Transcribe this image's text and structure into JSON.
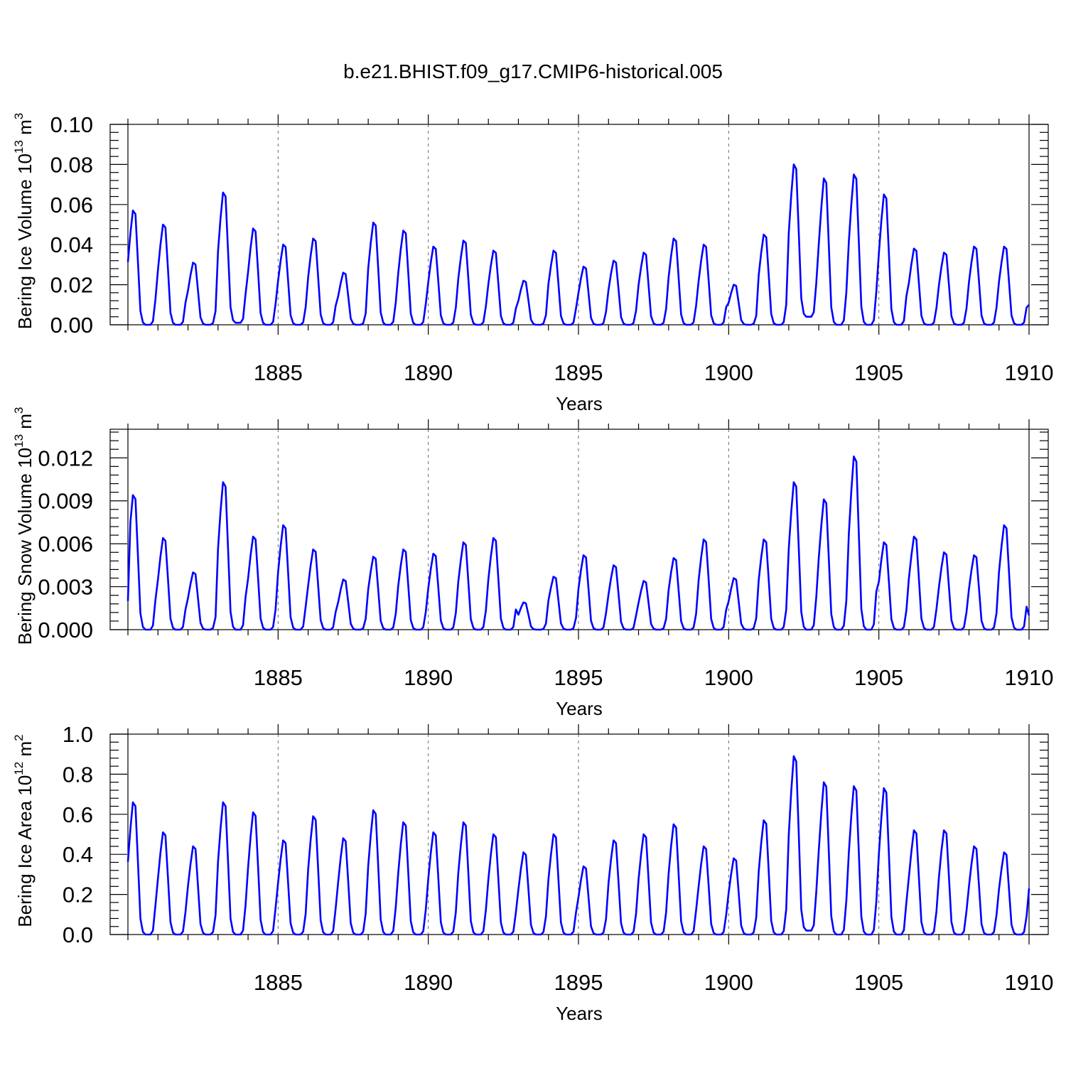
{
  "title": "b.e21.BHIST.f09_g17.CMIP6-historical.005",
  "colors": {
    "line": "#0000ff",
    "axis": "#000000",
    "grid": "#666666"
  },
  "chart_data": [
    {
      "type": "line",
      "ylabel": "Bering Ice Volume 10",
      "ylabel_exp": "13",
      "ylabel_unit": " m",
      "ylabel_unit_exp": "3",
      "xlabel": "Years",
      "xlim": [
        1880,
        1910
      ],
      "ylim": [
        0,
        0.1
      ],
      "yticks": [
        0,
        0.02,
        0.04,
        0.06,
        0.08,
        0.1
      ],
      "ytick_labels": [
        "0.00",
        "0.02",
        "0.04",
        "0.06",
        "0.08",
        "0.10"
      ],
      "xticks": [
        1885,
        1890,
        1895,
        1900,
        1905,
        1910
      ],
      "xtick_labels": [
        "1885",
        "1890",
        "1895",
        "1900",
        "1905",
        "1910"
      ],
      "grid": "vertical dashed at major x ticks",
      "annual_peaks": [
        0.057,
        0.05,
        0.031,
        0.066,
        0.048,
        0.04,
        0.043,
        0.026,
        0.051,
        0.047,
        0.039,
        0.042,
        0.037,
        0.022,
        0.037,
        0.029,
        0.032,
        0.036,
        0.043,
        0.04,
        0.02,
        0.045,
        0.08,
        0.073,
        0.075,
        0.065,
        0.038,
        0.036,
        0.039,
        0.039
      ],
      "annual_minima": [
        0.0,
        0.0,
        0.0,
        0.001,
        0.0,
        0.0,
        0.0,
        0.0,
        0.0,
        0.0,
        0.0,
        0.0,
        0.0,
        0.0,
        0.0,
        0.0,
        0.0,
        0.0,
        0.0,
        0.0,
        0.0,
        0.0,
        0.004,
        0.0,
        0.0,
        0.0,
        0.0,
        0.0,
        0.0,
        0.0
      ],
      "end_value": 0.01
    },
    {
      "type": "line",
      "ylabel": "Bering Snow Volume 10",
      "ylabel_exp": "13",
      "ylabel_unit": " m",
      "ylabel_unit_exp": "3",
      "xlabel": "Years",
      "xlim": [
        1880,
        1910
      ],
      "ylim": [
        0,
        0.014
      ],
      "yticks": [
        0,
        0.003,
        0.006,
        0.009,
        0.012
      ],
      "ytick_labels": [
        "0.000",
        "0.003",
        "0.006",
        "0.009",
        "0.012"
      ],
      "xticks": [
        1885,
        1890,
        1895,
        1900,
        1905,
        1910
      ],
      "xtick_labels": [
        "1885",
        "1890",
        "1895",
        "1900",
        "1905",
        "1910"
      ],
      "grid": "vertical dashed at major x ticks",
      "annual_peaks": [
        0.0094,
        0.0064,
        0.004,
        0.0103,
        0.0065,
        0.0073,
        0.0056,
        0.0035,
        0.0051,
        0.0056,
        0.0053,
        0.0061,
        0.0064,
        0.0019,
        0.0037,
        0.0052,
        0.0045,
        0.0034,
        0.005,
        0.0063,
        0.0036,
        0.0063,
        0.0103,
        0.0091,
        0.0121,
        0.0061,
        0.0065,
        0.0054,
        0.0052,
        0.0073
      ],
      "annual_minima": [
        0.0,
        0.0,
        0.0,
        0.0,
        0.0,
        0.0,
        0.0,
        0.0,
        0.0,
        0.0,
        0.0,
        0.0,
        0.0,
        0.0,
        0.0,
        0.0,
        0.0,
        0.0,
        0.0,
        0.0,
        0.0,
        0.0,
        0.0,
        0.0,
        0.0,
        0.0,
        0.0,
        0.0,
        0.0,
        0.0
      ],
      "start_value": 0.002,
      "end_value": 0.001
    },
    {
      "type": "line",
      "ylabel": "Bering Ice Area 10",
      "ylabel_exp": "12",
      "ylabel_unit": " m",
      "ylabel_unit_exp": "2",
      "xlabel": "Years",
      "xlim": [
        1880,
        1910
      ],
      "ylim": [
        0,
        1.0
      ],
      "yticks": [
        0,
        0.2,
        0.4,
        0.6,
        0.8,
        1.0
      ],
      "ytick_labels": [
        "0.0",
        "0.2",
        "0.4",
        "0.6",
        "0.8",
        "1.0"
      ],
      "xticks": [
        1885,
        1890,
        1895,
        1900,
        1905,
        1910
      ],
      "xtick_labels": [
        "1885",
        "1890",
        "1895",
        "1900",
        "1905",
        "1910"
      ],
      "grid": "vertical dashed at major x ticks",
      "annual_peaks": [
        0.66,
        0.51,
        0.44,
        0.66,
        0.61,
        0.47,
        0.59,
        0.48,
        0.62,
        0.56,
        0.51,
        0.56,
        0.5,
        0.41,
        0.5,
        0.34,
        0.47,
        0.5,
        0.55,
        0.44,
        0.38,
        0.57,
        0.89,
        0.76,
        0.74,
        0.73,
        0.52,
        0.52,
        0.44,
        0.41
      ],
      "annual_minima": [
        0.0,
        0.0,
        0.0,
        0.0,
        0.0,
        0.0,
        0.0,
        0.0,
        0.0,
        0.0,
        0.0,
        0.0,
        0.0,
        0.0,
        0.0,
        0.0,
        0.0,
        0.0,
        0.0,
        0.0,
        0.0,
        0.0,
        0.02,
        0.0,
        0.0,
        0.0,
        0.0,
        0.0,
        0.0,
        0.0
      ],
      "end_value": 0.23
    }
  ]
}
